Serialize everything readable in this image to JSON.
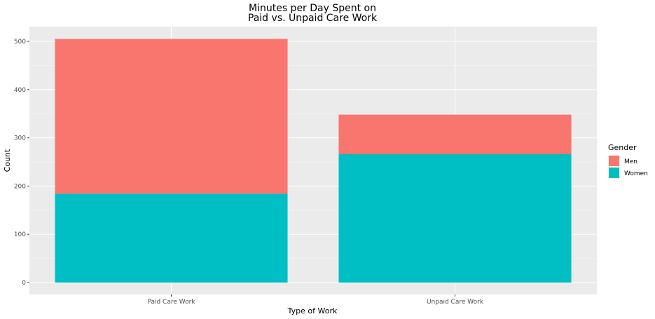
{
  "chart_data": {
    "type": "bar",
    "stacked": true,
    "title_line1": "Minutes per Day Spent on",
    "title_line2": "Paid vs. Unpaid Care Work",
    "xlabel": "Type of Work",
    "ylabel": "Count",
    "categories": [
      "Paid Care Work",
      "Unpaid Care Work"
    ],
    "series": [
      {
        "name": "Women",
        "color": "#00BFC4",
        "values": [
          184,
          266
        ]
      },
      {
        "name": "Men",
        "color": "#F8766D",
        "values": [
          321,
          82
        ]
      }
    ],
    "ylim": [
      0,
      505
    ],
    "yticks": [
      "0",
      "100",
      "200",
      "300",
      "400",
      "500"
    ],
    "legend": {
      "title": "Gender",
      "position": "right",
      "items": [
        {
          "name": "Men",
          "color": "#F8766D"
        },
        {
          "name": "Women",
          "color": "#00BFC4"
        }
      ]
    },
    "grid": true,
    "panel_background": "#EBEBEB"
  }
}
